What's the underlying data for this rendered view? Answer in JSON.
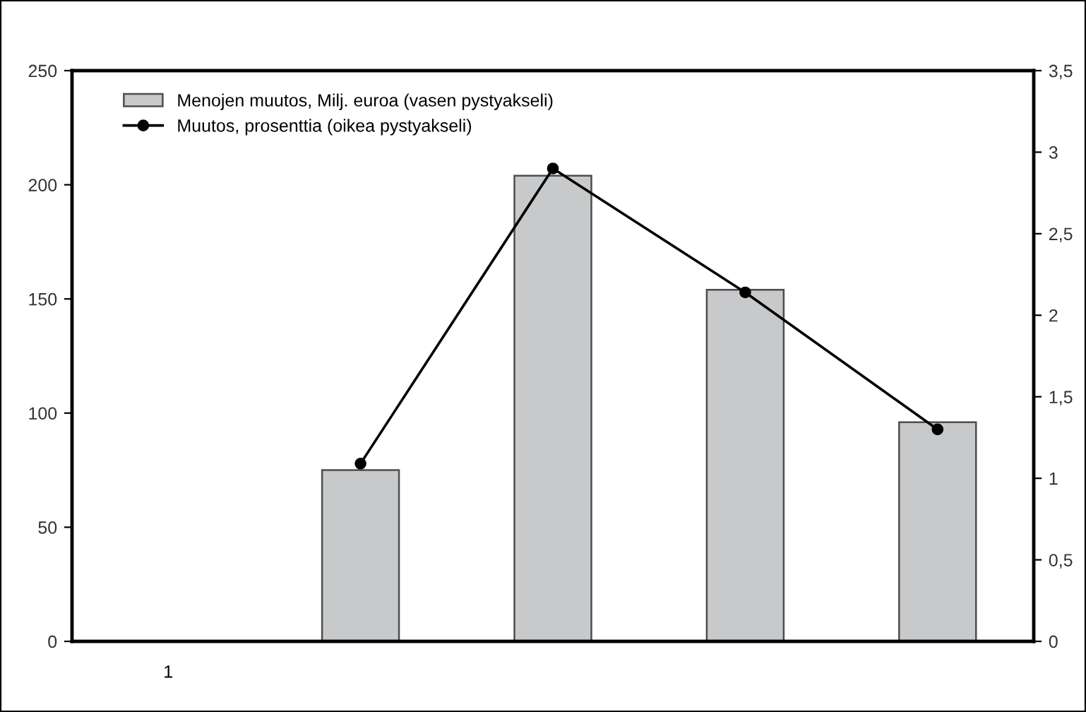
{
  "chart_data": {
    "type": "bar",
    "categories": [
      "1",
      null,
      null,
      null,
      null
    ],
    "series": [
      {
        "name": "Menojen muutos, Milj. euroa (vasen pystyakseli)",
        "color": "#c8c9cb",
        "values": [
          null,
          75,
          204,
          154,
          96
        ]
      },
      {
        "name": "Muutos, prosenttia (oikea pystyakseli)",
        "type": "line",
        "axis": "y2",
        "color": "#000000",
        "marker": "circle",
        "values": [
          null,
          1.09,
          2.9,
          2.14,
          1.3
        ]
      }
    ],
    "ylim": [
      0,
      250
    ],
    "yticks": [
      0,
      50,
      100,
      150,
      200,
      250
    ],
    "y2lim": [
      0,
      3.5
    ],
    "y2ticks": [
      0,
      {
        "value": 0.5,
        "label": "0,5"
      },
      1,
      {
        "value": 1.5,
        "label": "1,5"
      },
      2,
      {
        "value": 2.5,
        "label": "2,5"
      },
      3,
      {
        "value": 3.5,
        "label": "3,5"
      }
    ],
    "legend": "top left",
    "grid": false
  }
}
